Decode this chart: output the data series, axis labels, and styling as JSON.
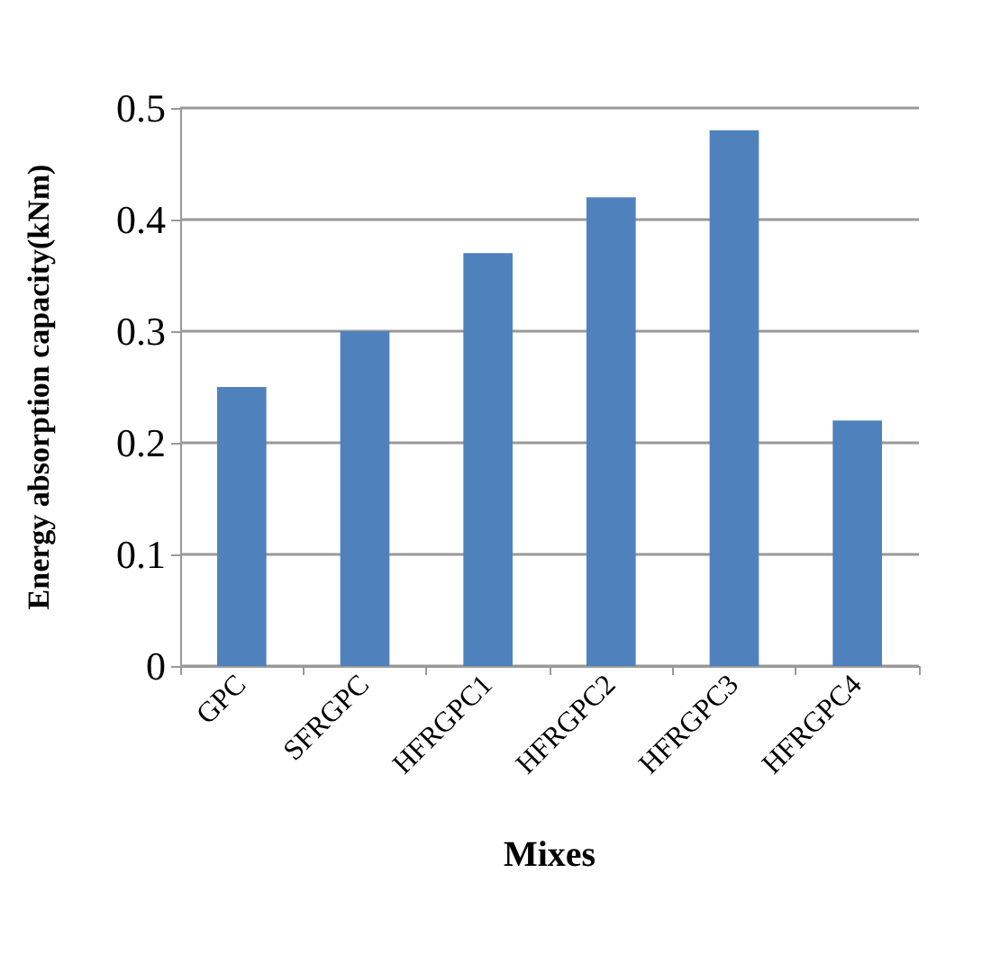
{
  "chart_data": {
    "type": "bar",
    "xlabel": "Mixes",
    "ylabel": "Energy absorption capacity(kNm)",
    "categories": [
      "GPC",
      "SFRGPC",
      "HFRGPC1",
      "HFRGPC2",
      "HFRGPC3",
      "HFRGPC4"
    ],
    "values": [
      0.25,
      0.3,
      0.37,
      0.42,
      0.48,
      0.22
    ],
    "color": "#4f81bd",
    "ylim": [
      0,
      0.5
    ],
    "yticks": [
      0,
      0.1,
      0.2,
      0.3,
      0.4,
      0.5
    ],
    "grid": "y"
  }
}
